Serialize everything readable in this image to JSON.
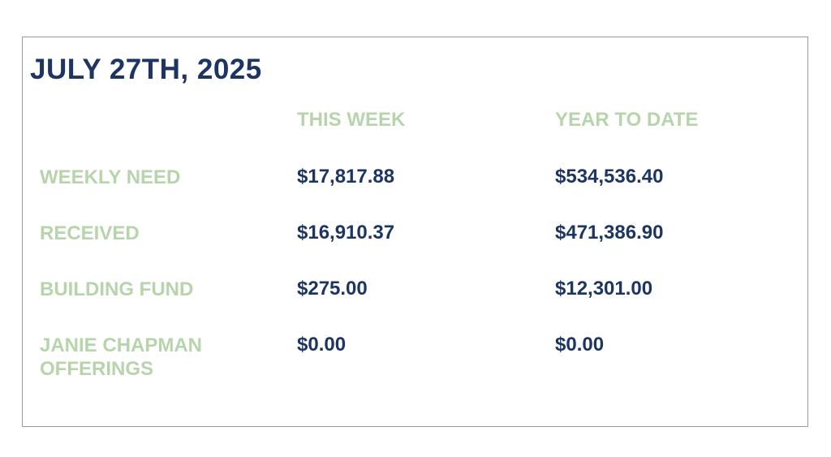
{
  "title": "JULY 27TH, 2025",
  "columns": [
    "THIS WEEK",
    "YEAR TO DATE"
  ],
  "rows": [
    {
      "label": "WEEKLY NEED",
      "this_week": "$17,817.88",
      "year_to_date": "$534,536.40"
    },
    {
      "label": "RECEIVED",
      "this_week": "$16,910.37",
      "year_to_date": "$471,386.90"
    },
    {
      "label": "BUILDING FUND",
      "this_week": "$275.00",
      "year_to_date": "$12,301.00"
    },
    {
      "label": "JANIE CHAPMAN OFFERINGS",
      "this_week": "$0.00",
      "year_to_date": "$0.00"
    }
  ],
  "colors": {
    "title": "#1d3563",
    "label_green": "#b7d4ab",
    "value_navy": "#1d3563",
    "border": "#9a9a9a"
  }
}
